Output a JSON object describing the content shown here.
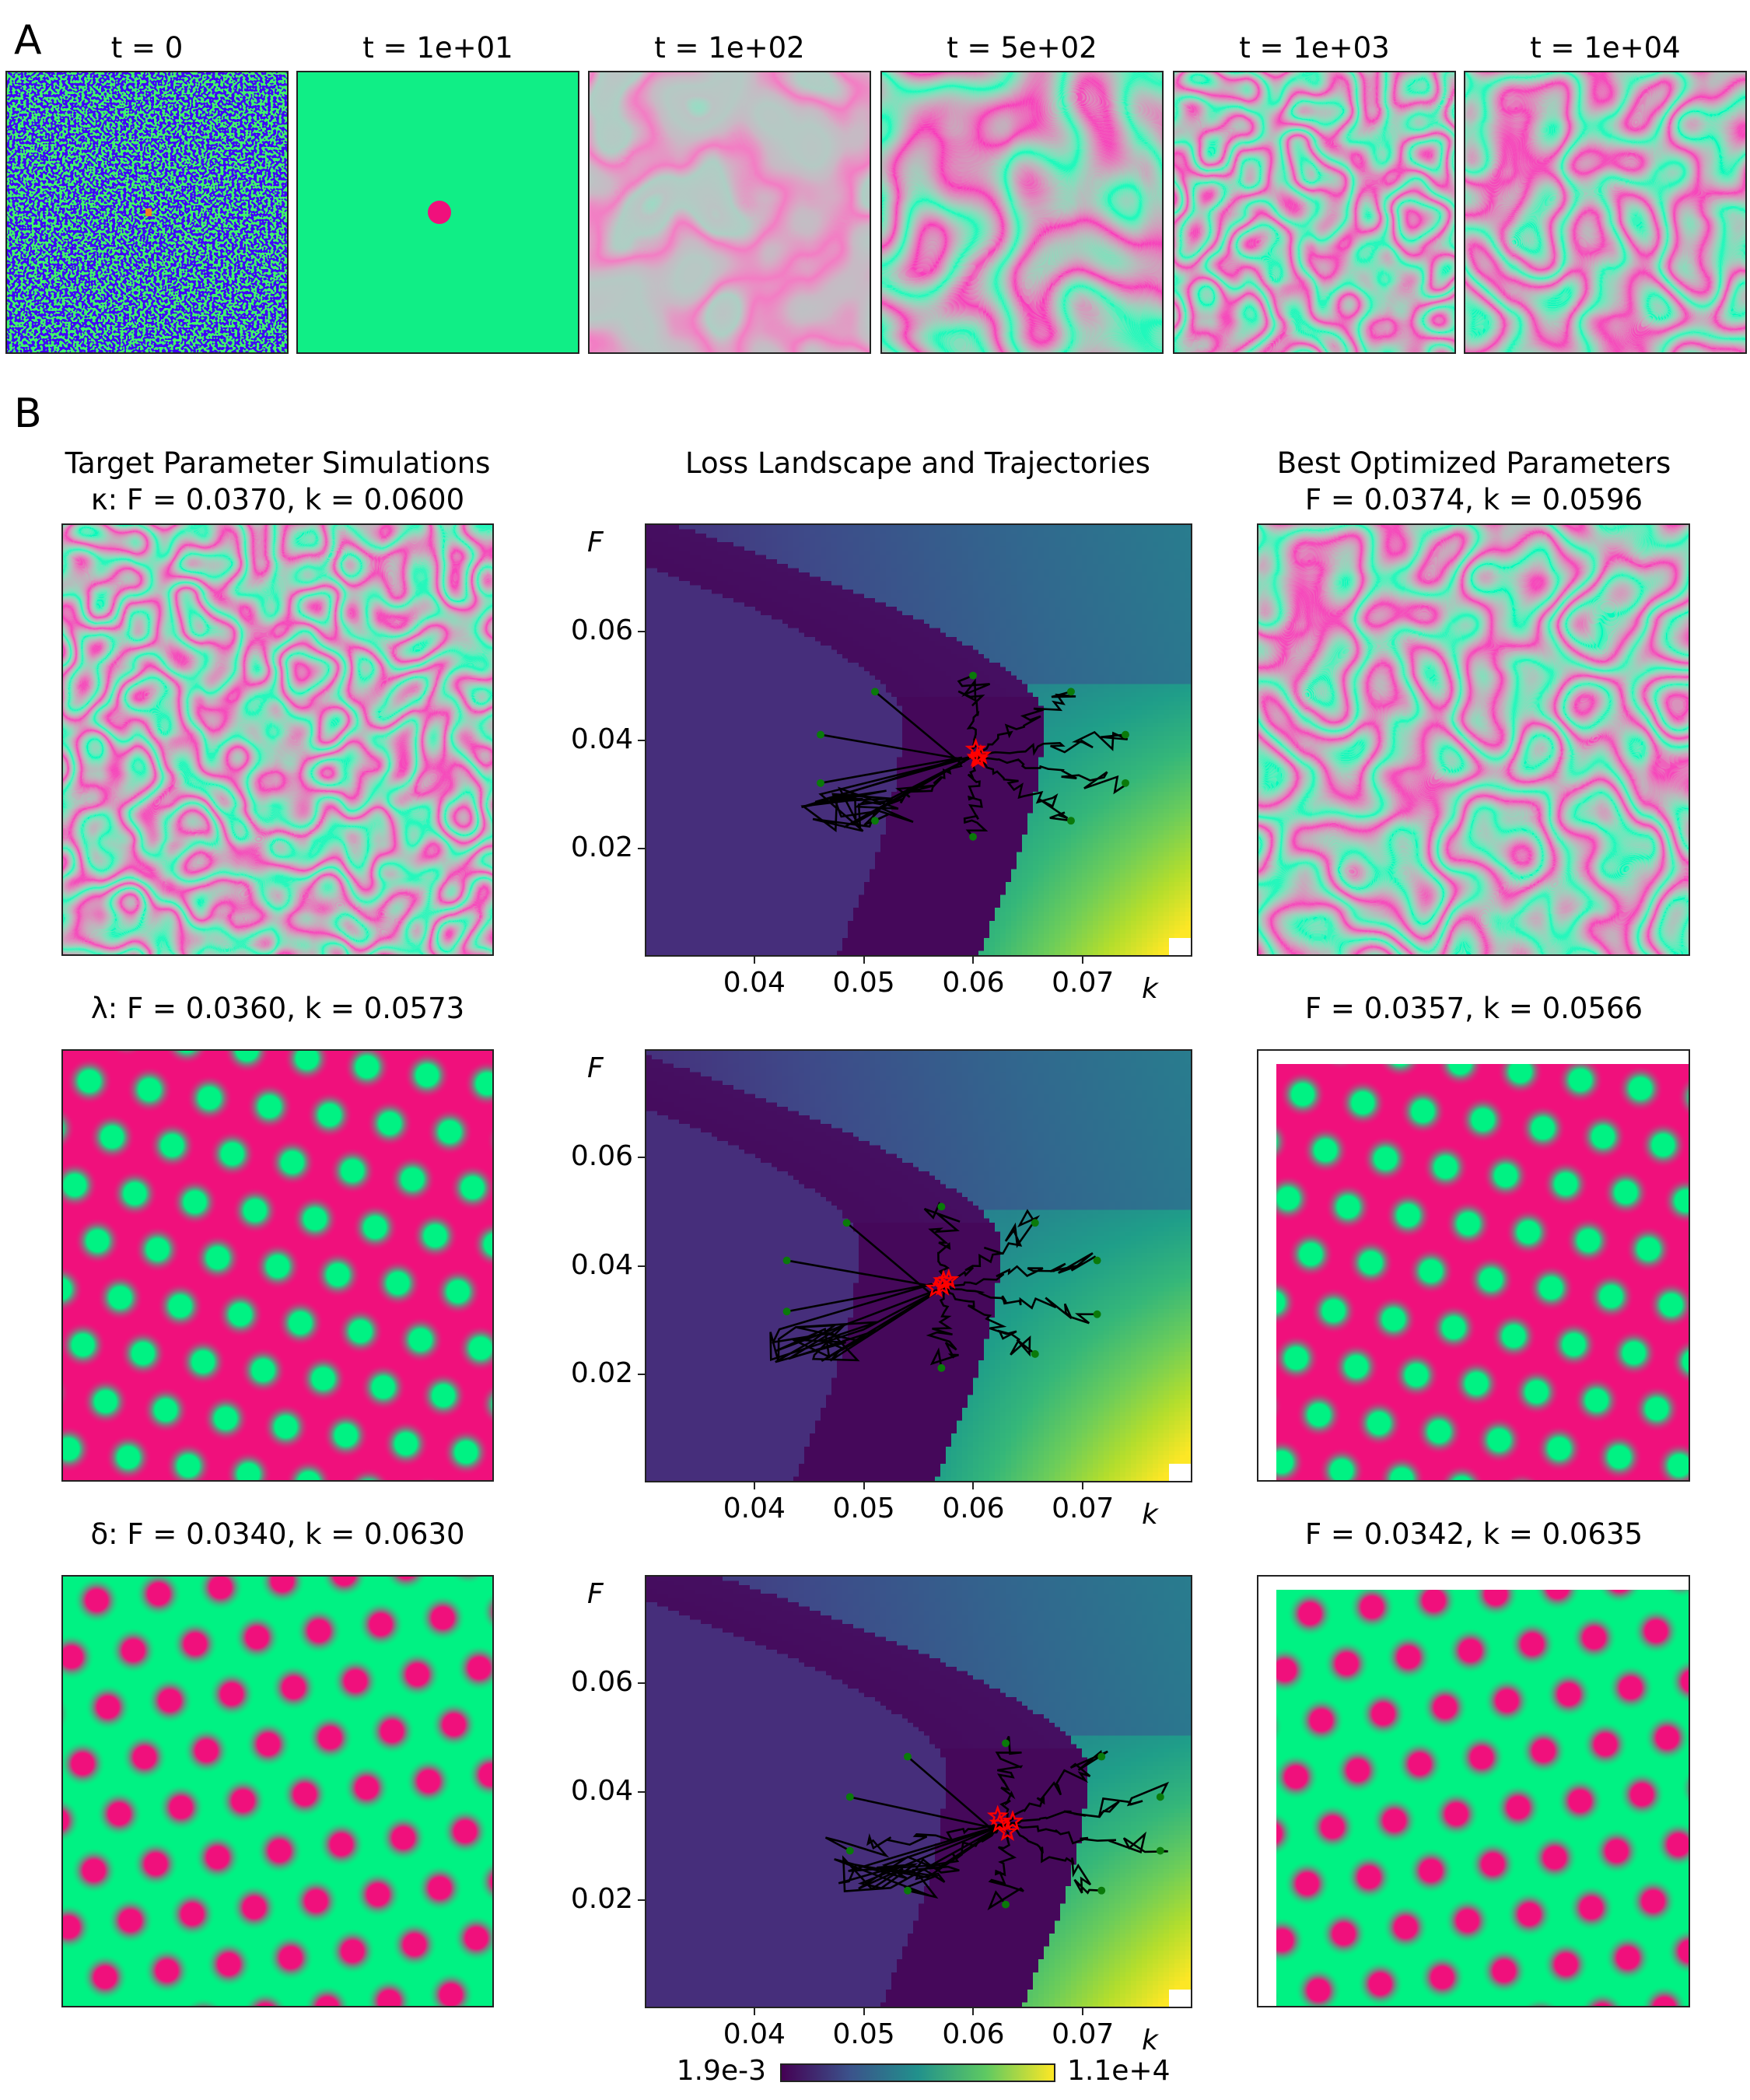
{
  "panel_a": {
    "letter": "A",
    "frames": [
      {
        "title": "t = 0"
      },
      {
        "title": "t = 1e+01"
      },
      {
        "title": "t = 1e+02"
      },
      {
        "title": "t = 5e+02"
      },
      {
        "title": "t = 1e+03"
      },
      {
        "title": "t = 1e+04"
      }
    ]
  },
  "panel_b": {
    "letter": "B",
    "col_titles": {
      "target": "Target Parameter Simulations",
      "landscape": "Loss Landscape and Trajectories",
      "best": "Best Optimized Parameters"
    },
    "rows": [
      {
        "target_label": "κ: F = 0.0370, k = 0.0600",
        "best_label": "F = 0.0374, k = 0.0596"
      },
      {
        "target_label": "λ: F = 0.0360, k = 0.0573",
        "best_label": "F = 0.0357, k = 0.0566"
      },
      {
        "target_label": "δ: F = 0.0340, k = 0.0630",
        "best_label": "F = 0.0342, k = 0.0635"
      }
    ],
    "colorbar": {
      "min_label": "1.9e-3",
      "max_label": "1.1e+4",
      "colormap": "viridis"
    }
  },
  "colors": {
    "pink": "#f0107c",
    "green": "#00f283",
    "start_marker": "#0a7a0a",
    "end_marker": "#ff0000"
  },
  "chart_data": [
    {
      "type": "heatmap",
      "title": "Loss Landscape and Trajectories",
      "xlabel": "k",
      "ylabel": "F",
      "xlim": [
        0.03,
        0.08
      ],
      "ylim": [
        0.0,
        0.08
      ],
      "xticks": [
        "0.04",
        "0.05",
        "0.06",
        "0.07"
      ],
      "yticks": [
        "0.02",
        "0.04",
        "0.06"
      ],
      "target": [
        0.06,
        0.037
      ],
      "starts": [
        [
          0.051,
          0.049
        ],
        [
          0.046,
          0.041
        ],
        [
          0.046,
          0.032
        ],
        [
          0.06,
          0.052
        ],
        [
          0.069,
          0.049
        ],
        [
          0.074,
          0.041
        ],
        [
          0.074,
          0.032
        ],
        [
          0.069,
          0.025
        ],
        [
          0.051,
          0.025
        ],
        [
          0.06,
          0.022
        ]
      ],
      "band_shift": 0.0
    },
    {
      "type": "heatmap",
      "title": "Loss Landscape and Trajectories",
      "xlabel": "k",
      "ylabel": "F",
      "xlim": [
        0.03,
        0.08
      ],
      "ylim": [
        0.0,
        0.08
      ],
      "xticks": [
        "0.04",
        "0.05",
        "0.06",
        "0.07"
      ],
      "yticks": [
        "0.02",
        "0.04",
        "0.06"
      ],
      "target": [
        0.0573,
        0.036
      ],
      "starts": [
        [
          0.0484,
          0.048
        ],
        [
          0.0571,
          0.051
        ],
        [
          0.0657,
          0.048
        ],
        [
          0.0429,
          0.041
        ],
        [
          0.0714,
          0.041
        ],
        [
          0.0429,
          0.0315
        ],
        [
          0.0714,
          0.031
        ],
        [
          0.0657,
          0.0236
        ],
        [
          0.0571,
          0.021
        ]
      ],
      "band_shift": -0.004
    },
    {
      "type": "heatmap",
      "title": "Loss Landscape and Trajectories",
      "xlabel": "k",
      "ylabel": "F",
      "xlim": [
        0.03,
        0.08
      ],
      "ylim": [
        0.0,
        0.08
      ],
      "xticks": [
        "0.04",
        "0.05",
        "0.06",
        "0.07"
      ],
      "yticks": [
        "0.02",
        "0.04",
        "0.06"
      ],
      "target": [
        0.063,
        0.034
      ],
      "starts": [
        [
          0.054,
          0.0465
        ],
        [
          0.063,
          0.049
        ],
        [
          0.0718,
          0.0465
        ],
        [
          0.0487,
          0.039
        ],
        [
          0.0772,
          0.039
        ],
        [
          0.0487,
          0.029
        ],
        [
          0.0772,
          0.029
        ],
        [
          0.0718,
          0.0216
        ],
        [
          0.063,
          0.019
        ],
        [
          0.054,
          0.0216
        ]
      ],
      "band_shift": 0.004
    }
  ]
}
